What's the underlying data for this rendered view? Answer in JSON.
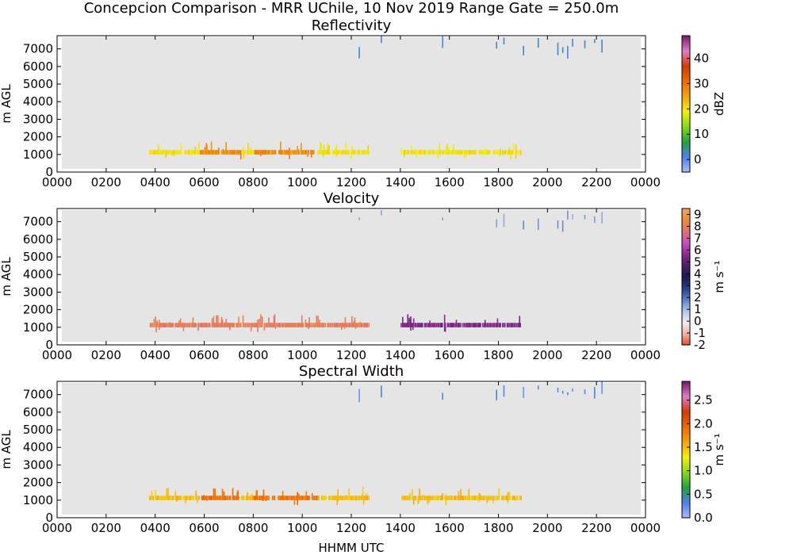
{
  "figure": {
    "title": "Concepcion Comparison - MRR UChile, 10 Nov 2019 Range Gate = 250.0m",
    "xlabel": "HHMM UTC"
  },
  "colors": {
    "background": "#ffffff",
    "plot_background": "#e5e5e5",
    "colormap": [
      "#a9c0f5",
      "#4f7ff0",
      "#1fa23c",
      "#86d91a",
      "#f2f20a",
      "#f6a40d",
      "#ef6b00",
      "#d63a00",
      "#e27cc4",
      "#7a1b6e"
    ],
    "velocity_colormap": [
      "#e8452d",
      "#f0b3a8",
      "#f2eeee",
      "#b3c6ea",
      "#5a7fc7",
      "#2a3f8e",
      "#1a1a4a",
      "#4b1e6b",
      "#8b2a8f",
      "#c84fc2",
      "#e07070",
      "#f08a3c",
      "#f6a25e"
    ]
  },
  "chart_data": [
    {
      "type": "heatmap",
      "title": "Reflectivity",
      "ylabel": "m AGL",
      "xlabel": "",
      "x_ticks": [
        "0000",
        "0200",
        "0400",
        "0600",
        "0800",
        "1000",
        "1200",
        "1400",
        "1600",
        "1800",
        "2000",
        "2200",
        "0000"
      ],
      "xlim_hours": [
        0,
        24
      ],
      "y_ticks": [
        "0",
        "1000",
        "2000",
        "3000",
        "4000",
        "5000",
        "6000",
        "7000"
      ],
      "ylim": [
        0,
        7750
      ],
      "colorbar": {
        "label": "dBZ",
        "range": [
          -5,
          49
        ],
        "ticks": [
          "0",
          "10",
          "20",
          "30",
          "40"
        ],
        "tick_values": [
          0,
          10,
          20,
          30,
          40
        ]
      },
      "observations": {
        "main_band": {
          "start_hour": 3.75,
          "end_hour": 18.95,
          "gap_hours": [
            [
              12.7,
              14.0
            ]
          ],
          "altitude_m": [
            1000,
            1250
          ],
          "typical_value": 20,
          "core_hours": [
            [
              5.8,
              7.5
            ],
            [
              8.0,
              10.6
            ]
          ],
          "core_value": 28
        },
        "upper_echoes": {
          "start_hour": 12.3,
          "end_hour": 22.2,
          "altitude_m": [
            6000,
            7750
          ],
          "typical_value": 2
        }
      }
    },
    {
      "type": "heatmap",
      "title": "Velocity",
      "ylabel": "m $s^{-1}$",
      "ylabel_left": "m AGL",
      "x_ticks": [
        "0000",
        "0200",
        "0400",
        "0600",
        "0800",
        "1000",
        "1200",
        "1400",
        "1600",
        "1800",
        "2000",
        "2200",
        "0000"
      ],
      "xlim_hours": [
        0,
        24
      ],
      "y_ticks": [
        "0",
        "1000",
        "2000",
        "3000",
        "4000",
        "5000",
        "6000",
        "7000"
      ],
      "ylim": [
        0,
        7750
      ],
      "colorbar": {
        "label": "m s⁻¹",
        "range": [
          -2,
          9.5
        ],
        "ticks": [
          "-2",
          "-1",
          "0",
          "1",
          "2",
          "3",
          "4",
          "5",
          "6",
          "7",
          "8",
          "9"
        ],
        "tick_values": [
          -2,
          -1,
          0,
          1,
          2,
          3,
          4,
          5,
          6,
          7,
          8,
          9
        ]
      },
      "observations": {
        "main_band": {
          "start_hour": 3.75,
          "end_hour": 18.95,
          "gap_hours": [
            [
              12.7,
              14.0
            ]
          ],
          "altitude_m": [
            1000,
            1250
          ],
          "typical_value": 8,
          "late_value": 5.5,
          "late_after_hour": 13.8
        },
        "upper_echoes": {
          "start_hour": 12.3,
          "end_hour": 22.2,
          "altitude_m": [
            6000,
            7750
          ],
          "typical_value": 1.5
        }
      }
    },
    {
      "type": "heatmap",
      "title": "Spectral Width",
      "ylabel": "m $s^{-1}$",
      "ylabel_left": "m AGL",
      "x_ticks": [
        "0000",
        "0200",
        "0400",
        "0600",
        "0800",
        "1000",
        "1200",
        "1400",
        "1600",
        "1800",
        "2000",
        "2200",
        "0000"
      ],
      "xlim_hours": [
        0,
        24
      ],
      "y_ticks": [
        "0",
        "1000",
        "2000",
        "3000",
        "4000",
        "5000",
        "6000",
        "7000"
      ],
      "ylim": [
        0,
        7750
      ],
      "colorbar": {
        "label": "m s⁻¹",
        "range": [
          0,
          2.9
        ],
        "ticks": [
          "0.0",
          "0.5",
          "1.0",
          "1.5",
          "2.0",
          "2.5"
        ],
        "tick_values": [
          0,
          0.5,
          1.0,
          1.5,
          2.0,
          2.5
        ]
      },
      "observations": {
        "main_band": {
          "start_hour": 3.75,
          "end_hour": 18.95,
          "gap_hours": [
            [
              12.7,
              14.0
            ]
          ],
          "altitude_m": [
            1000,
            1250
          ],
          "typical_value": 1.5,
          "core_hours": [
            [
              5.8,
              7.5
            ],
            [
              8.0,
              10.6
            ]
          ],
          "core_value": 1.9
        },
        "upper_echoes": {
          "start_hour": 12.3,
          "end_hour": 22.2,
          "altitude_m": [
            6000,
            7750
          ],
          "typical_value": 0.3
        }
      }
    }
  ]
}
